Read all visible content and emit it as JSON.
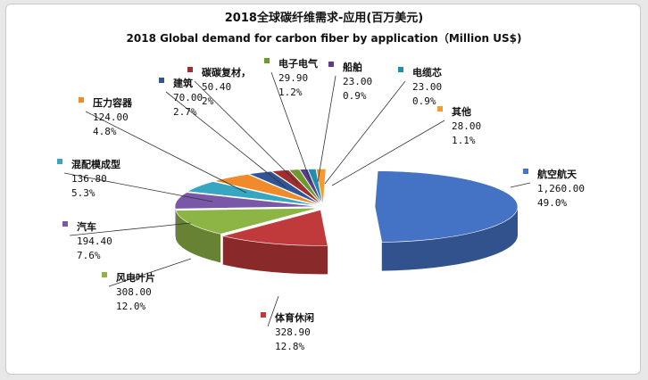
{
  "chart_data": {
    "type": "pie",
    "title": "2018全球碳纤维需求-应用(百万美元)",
    "subtitle": "2018 Global demand for carbon fiber by application（Million US$)",
    "slices": [
      {
        "name": "航空航天",
        "value": 1260.0,
        "value_label": "1,260.00",
        "pct_label": "49.0%",
        "color": "#4472c4"
      },
      {
        "name": "体育休闲",
        "value": 328.9,
        "value_label": "328.90",
        "pct_label": "12.8%",
        "color": "#c0393b"
      },
      {
        "name": "风电叶片",
        "value": 308.0,
        "value_label": "308.00",
        "pct_label": "12.0%",
        "color": "#8db545"
      },
      {
        "name": "汽车",
        "value": 194.4,
        "value_label": "194.40",
        "pct_label": "7.6%",
        "color": "#7a58a8"
      },
      {
        "name": "混配模成型",
        "value": 136.8,
        "value_label": "136.80",
        "pct_label": "5.3%",
        "color": "#36a6c1"
      },
      {
        "name": "压力容器",
        "value": 124.0,
        "value_label": "124.00",
        "pct_label": "4.8%",
        "color": "#f08a2a"
      },
      {
        "name": "建筑",
        "value": 70.0,
        "value_label": "70.00",
        "pct_label": "2.7%",
        "color": "#2f5597"
      },
      {
        "name": "碳碳复材，",
        "value": 50.4,
        "value_label": "50.40",
        "pct_label": "2%",
        "color": "#a12e2e"
      },
      {
        "name": "电子电气",
        "value": 29.9,
        "value_label": "29.90",
        "pct_label": "1.2%",
        "color": "#6d9a2d"
      },
      {
        "name": "船舶",
        "value": 23.0,
        "value_label": "23.00",
        "pct_label": "0.9%",
        "color": "#5b3c8c"
      },
      {
        "name": "电缆芯",
        "value": 23.0,
        "value_label": "23.00",
        "pct_label": "0.9%",
        "color": "#1f8fb0"
      },
      {
        "name": "其他",
        "value": 28.0,
        "value_label": "28.00",
        "pct_label": "1.1%",
        "color": "#f59a30"
      }
    ]
  }
}
